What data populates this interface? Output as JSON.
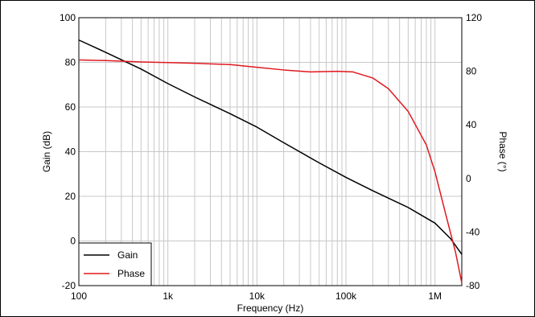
{
  "chart_data": {
    "type": "line",
    "title": "",
    "xlabel": "Frequency (Hz)",
    "ylabel_left": "Gain (dB)",
    "ylabel_right": "Phase (°)",
    "x_scale": "log",
    "xlim": [
      100,
      2000000
    ],
    "ylim_left": [
      -20,
      100
    ],
    "ylim_right": [
      -80,
      120
    ],
    "x_ticks": [
      {
        "value": 100,
        "label": "100"
      },
      {
        "value": 1000,
        "label": "1k"
      },
      {
        "value": 10000,
        "label": "10k"
      },
      {
        "value": 100000,
        "label": "100k"
      },
      {
        "value": 1000000,
        "label": "1M"
      }
    ],
    "y_ticks_left": [
      {
        "value": 100,
        "label": "100"
      },
      {
        "value": 80,
        "label": "80"
      },
      {
        "value": 60,
        "label": "60"
      },
      {
        "value": 40,
        "label": "40"
      },
      {
        "value": 20,
        "label": "20"
      },
      {
        "value": 0,
        "label": "0"
      },
      {
        "value": -20,
        "label": "-20"
      }
    ],
    "y_ticks_right": [
      {
        "value": 120,
        "label": "120"
      },
      {
        "value": 80,
        "label": "80"
      },
      {
        "value": 40,
        "label": "40"
      },
      {
        "value": 0,
        "label": "0"
      },
      {
        "value": -40,
        "label": "-40"
      },
      {
        "value": -80,
        "label": "-80"
      }
    ],
    "grid": true,
    "legend_position": "bottom-left",
    "series": [
      {
        "name": "Gain",
        "axis": "left",
        "color": "#000000",
        "points": [
          [
            100,
            90
          ],
          [
            200,
            84.5
          ],
          [
            500,
            77
          ],
          [
            1000,
            70.5
          ],
          [
            2000,
            64.5
          ],
          [
            5000,
            57
          ],
          [
            10000,
            51
          ],
          [
            20000,
            44
          ],
          [
            50000,
            35
          ],
          [
            100000,
            28.5
          ],
          [
            200000,
            22.5
          ],
          [
            500000,
            15
          ],
          [
            1000000,
            8
          ],
          [
            1500000,
            1
          ],
          [
            2000000,
            -6
          ]
        ]
      },
      {
        "name": "Phase",
        "axis": "right",
        "color": "#e0191f",
        "points": [
          [
            100,
            88.5
          ],
          [
            200,
            88
          ],
          [
            500,
            87
          ],
          [
            1000,
            86.5
          ],
          [
            2000,
            86
          ],
          [
            5000,
            85
          ],
          [
            10000,
            83
          ],
          [
            20000,
            81
          ],
          [
            40000,
            79.5
          ],
          [
            80000,
            80
          ],
          [
            120000,
            79.5
          ],
          [
            200000,
            75
          ],
          [
            300000,
            67
          ],
          [
            500000,
            50
          ],
          [
            800000,
            25
          ],
          [
            1000000,
            5
          ],
          [
            1300000,
            -25
          ],
          [
            1700000,
            -55
          ],
          [
            2000000,
            -78
          ]
        ]
      }
    ]
  }
}
